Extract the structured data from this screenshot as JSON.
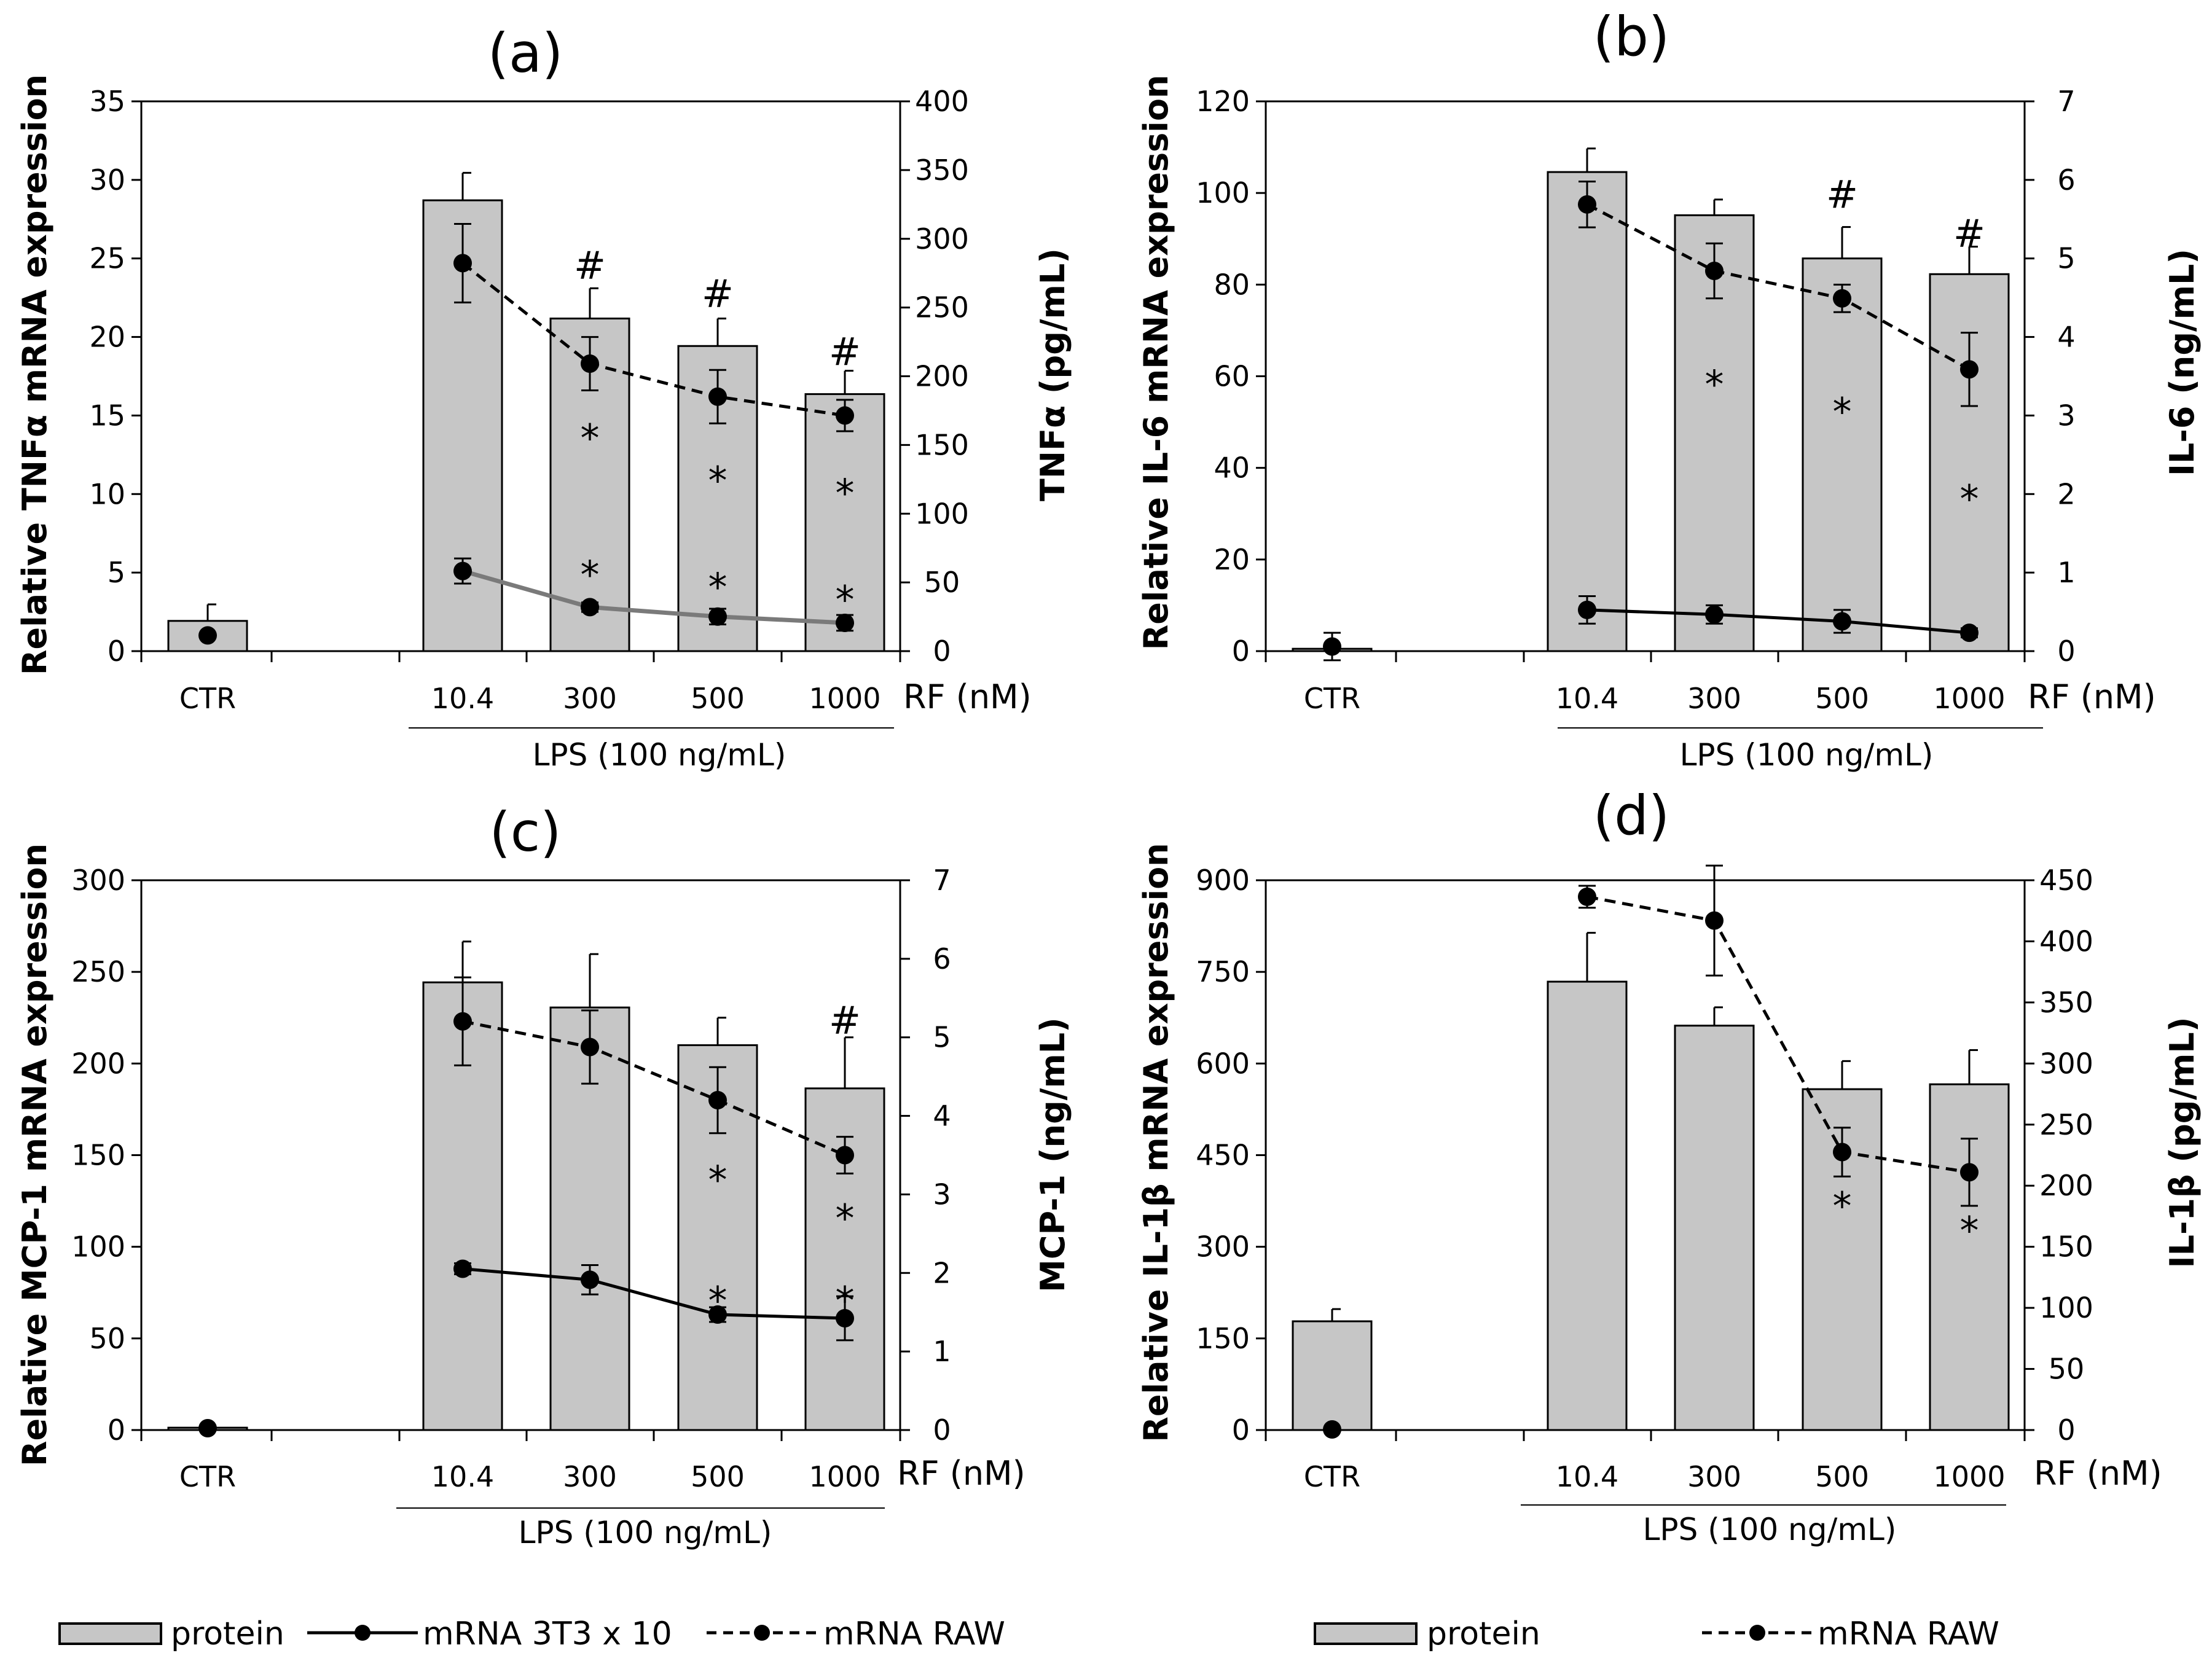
{
  "chart_data": [
    {
      "id": "a",
      "type": "bar",
      "title": "(a)",
      "ylabel": "Relative TNFα mRNA expression",
      "y2label": "TNFα (pg/mL)",
      "categories": [
        "CTR",
        "10.4",
        "300",
        "500",
        "1000"
      ],
      "xaxis_suffix": "RF (nM)",
      "group_label": "LPS (100 ng/mL)",
      "ylim": [
        0,
        35
      ],
      "yticks": [
        0,
        5,
        10,
        15,
        20,
        25,
        30,
        35
      ],
      "y2lim": [
        0,
        400
      ],
      "y2ticks": [
        0,
        50,
        100,
        150,
        200,
        250,
        300,
        350,
        400
      ],
      "series": [
        {
          "name": "protein",
          "kind": "bar",
          "axis": "right",
          "values": [
            22,
            328,
            242,
            222,
            187
          ],
          "errors": [
            12,
            20,
            22,
            20,
            17
          ]
        },
        {
          "name": "mRNA RAW",
          "kind": "dashed",
          "axis": "left",
          "values": [
            null,
            24.7,
            18.3,
            16.2,
            15.0
          ],
          "errors": [
            null,
            2.5,
            1.7,
            1.7,
            1.0
          ]
        },
        {
          "name": "mRNA 3T3 x 10",
          "kind": "solid",
          "axis": "left",
          "values": [
            1.0,
            5.1,
            2.8,
            2.2,
            1.8
          ],
          "errors": [
            null,
            0.8,
            0.3,
            0.5,
            0.5
          ]
        }
      ],
      "annotations": [
        {
          "text": "#",
          "cat": 2,
          "y": 24.5
        },
        {
          "text": "#",
          "cat": 3,
          "y": 22.7
        },
        {
          "text": "#",
          "cat": 4,
          "y": 19.0
        },
        {
          "text": "*",
          "cat": 2,
          "y": 13.5
        },
        {
          "text": "*",
          "cat": 3,
          "y": 10.8
        },
        {
          "text": "*",
          "cat": 4,
          "y": 10.0
        },
        {
          "text": "*",
          "cat": 2,
          "y": 4.8
        },
        {
          "text": "*",
          "cat": 3,
          "y": 4.0
        },
        {
          "text": "*",
          "cat": 4,
          "y": 3.2
        }
      ]
    },
    {
      "id": "b",
      "type": "bar",
      "title": "(b)",
      "ylabel": "Relative IL-6  mRNA expression",
      "y2label": "IL-6 (ng/mL)",
      "categories": [
        "CTR",
        "10.4",
        "300",
        "500",
        "1000"
      ],
      "xaxis_suffix": "RF (nM)",
      "group_label": "LPS (100 ng/mL)",
      "ylim": [
        0,
        120
      ],
      "yticks": [
        0,
        20,
        40,
        60,
        80,
        100,
        120
      ],
      "y2lim": [
        0,
        7
      ],
      "y2ticks": [
        0,
        1,
        2,
        3,
        4,
        5,
        6,
        7
      ],
      "series": [
        {
          "name": "protein",
          "kind": "bar",
          "axis": "right",
          "values": [
            0.03,
            6.1,
            5.55,
            5.0,
            4.8
          ],
          "errors": [
            0,
            0.3,
            0.2,
            0.4,
            0.35
          ]
        },
        {
          "name": "mRNA RAW",
          "kind": "dashed",
          "axis": "left",
          "values": [
            null,
            97.5,
            83.0,
            77.0,
            61.5
          ],
          "errors": [
            null,
            5.0,
            6.0,
            3.0,
            8.0
          ]
        },
        {
          "name": "mRNA 3T3 x 10",
          "kind": "solid",
          "axis": "left",
          "values": [
            1.0,
            9.0,
            8.0,
            6.5,
            4.0
          ],
          "errors": [
            3.0,
            3.0,
            2.0,
            2.5,
            1.0
          ]
        }
      ],
      "annotations": [
        {
          "text": "#",
          "cat": 3,
          "y": 99.5
        },
        {
          "text": "#",
          "cat": 4,
          "y": 91.0
        },
        {
          "text": "*",
          "cat": 2,
          "y": 58.0
        },
        {
          "text": "*",
          "cat": 3,
          "y": 52.0
        },
        {
          "text": "*",
          "cat": 4,
          "y": 33.0
        }
      ]
    },
    {
      "id": "c",
      "type": "bar",
      "title": "(c)",
      "ylabel": "Relative MCP-1 mRNA expression",
      "y2label": "MCP-1 (ng/mL)",
      "categories": [
        "CTR",
        "10.4",
        "300",
        "500",
        "1000"
      ],
      "xaxis_suffix": "RF (nM)",
      "group_label": "LPS (100 ng/mL)",
      "ylim": [
        0,
        300
      ],
      "yticks": [
        0,
        50,
        100,
        150,
        200,
        250,
        300
      ],
      "y2lim": [
        0,
        7
      ],
      "y2ticks": [
        0,
        1,
        2,
        3,
        4,
        5,
        6,
        7
      ],
      "series": [
        {
          "name": "protein",
          "kind": "bar",
          "axis": "right",
          "values": [
            0.03,
            5.7,
            5.38,
            4.9,
            4.35
          ],
          "errors": [
            0,
            0.52,
            0.68,
            0.35,
            0.65
          ]
        },
        {
          "name": "mRNA RAW",
          "kind": "dashed",
          "axis": "left",
          "values": [
            null,
            223.0,
            209.0,
            180.0,
            150.0
          ],
          "errors": [
            null,
            24.0,
            20.0,
            18.0,
            10.0
          ]
        },
        {
          "name": "mRNA 3T3 x 10",
          "kind": "solid",
          "axis": "left",
          "values": [
            1.0,
            88.0,
            82.0,
            63.0,
            61.0
          ],
          "errors": [
            null,
            3.0,
            8.0,
            4.0,
            12.0
          ]
        }
      ],
      "annotations": [
        {
          "text": "#",
          "cat": 4,
          "y": 223.0
        },
        {
          "text": "*",
          "cat": 3,
          "y": 136.0
        },
        {
          "text": "*",
          "cat": 4,
          "y": 115.0
        },
        {
          "text": "*",
          "cat": 3,
          "y": 70.0
        },
        {
          "text": "*",
          "cat": 4,
          "y": 70.0
        }
      ]
    },
    {
      "id": "d",
      "type": "bar",
      "title": "(d)",
      "ylabel": "Relative IL-1β mRNA expression",
      "y2label": "IL-1β (pg/mL)",
      "categories": [
        "CTR",
        "10.4",
        "300",
        "500",
        "1000"
      ],
      "xaxis_suffix": "RF (nM)",
      "group_label": "LPS (100 ng/mL)",
      "ylim": [
        0,
        900
      ],
      "yticks": [
        0,
        150,
        300,
        450,
        600,
        750,
        900
      ],
      "y2lim": [
        0,
        450
      ],
      "y2ticks": [
        0,
        50,
        100,
        150,
        200,
        250,
        300,
        350,
        400,
        450
      ],
      "series": [
        {
          "name": "protein",
          "kind": "bar",
          "axis": "right",
          "values": [
            89,
            367,
            331,
            279,
            283
          ],
          "errors": [
            10,
            40,
            15,
            23,
            28
          ]
        },
        {
          "name": "mRNA RAW",
          "kind": "dashed",
          "axis": "left",
          "values": [
            1.0,
            873.0,
            834.0,
            455.0,
            422.0
          ],
          "errors": [
            null,
            18.0,
            90.0,
            40.0,
            55.0
          ]
        }
      ],
      "annotations": [
        {
          "text": "*",
          "cat": 3,
          "y": 365.0
        },
        {
          "text": "*",
          "cat": 4,
          "y": 325.0
        }
      ]
    }
  ],
  "legends": {
    "left": {
      "protein": "protein",
      "solid": "mRNA 3T3 x 10",
      "dashed": "mRNA RAW"
    },
    "right": {
      "protein": "protein",
      "dashed": "mRNA RAW"
    }
  }
}
